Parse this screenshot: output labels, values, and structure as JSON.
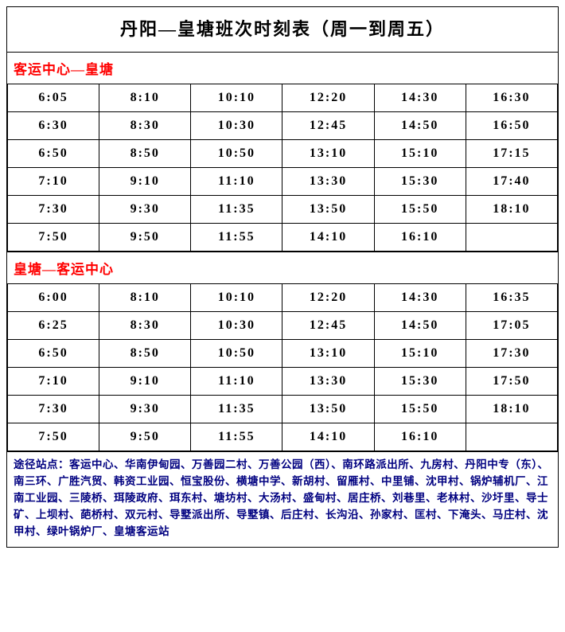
{
  "title": "丹阳—皇塘班次时刻表（周一到周五）",
  "section1": {
    "header": "客运中心—皇塘",
    "rows": [
      [
        "6:05",
        "8:10",
        "10:10",
        "12:20",
        "14:30",
        "16:30"
      ],
      [
        "6:30",
        "8:30",
        "10:30",
        "12:45",
        "14:50",
        "16:50"
      ],
      [
        "6:50",
        "8:50",
        "10:50",
        "13:10",
        "15:10",
        "17:15"
      ],
      [
        "7:10",
        "9:10",
        "11:10",
        "13:30",
        "15:30",
        "17:40"
      ],
      [
        "7:30",
        "9:30",
        "11:35",
        "13:50",
        "15:50",
        "18:10"
      ],
      [
        "7:50",
        "9:50",
        "11:55",
        "14:10",
        "16:10",
        ""
      ]
    ]
  },
  "section2": {
    "header": "皇塘—客运中心",
    "rows": [
      [
        "6:00",
        "8:10",
        "10:10",
        "12:20",
        "14:30",
        "16:35"
      ],
      [
        "6:25",
        "8:30",
        "10:30",
        "12:45",
        "14:50",
        "17:05"
      ],
      [
        "6:50",
        "8:50",
        "10:50",
        "13:10",
        "15:10",
        "17:30"
      ],
      [
        "7:10",
        "9:10",
        "11:10",
        "13:30",
        "15:30",
        "17:50"
      ],
      [
        "7:30",
        "9:30",
        "11:35",
        "13:50",
        "15:50",
        "18:10"
      ],
      [
        "7:50",
        "9:50",
        "11:55",
        "14:10",
        "16:10",
        ""
      ]
    ]
  },
  "footer": "途径站点：客运中心、华南伊甸园、万善园二村、万善公园（西）、南环路派出所、九房村、丹阳中专（东）、南三环、广胜汽贸、韩资工业园、恒宝股份、横塘中学、新胡村、留雁村、中里铺、沈甲村、锅炉辅机厂、江南工业园、三陵桥、珥陵政府、珥东村、塘坊村、大汤村、盛甸村、居庄桥、刘巷里、老林村、沙圩里、导士矿、上坝村、葩桥村、双元村、导墅派出所、导墅镇、后庄村、长沟沿、孙家村、匡村、下淹头、马庄村、沈甲村、绿叶锅炉厂、皇塘客运站",
  "colors": {
    "header_text": "#ff0000",
    "footer_text": "#000080",
    "border": "#000000",
    "background": "#ffffff"
  }
}
